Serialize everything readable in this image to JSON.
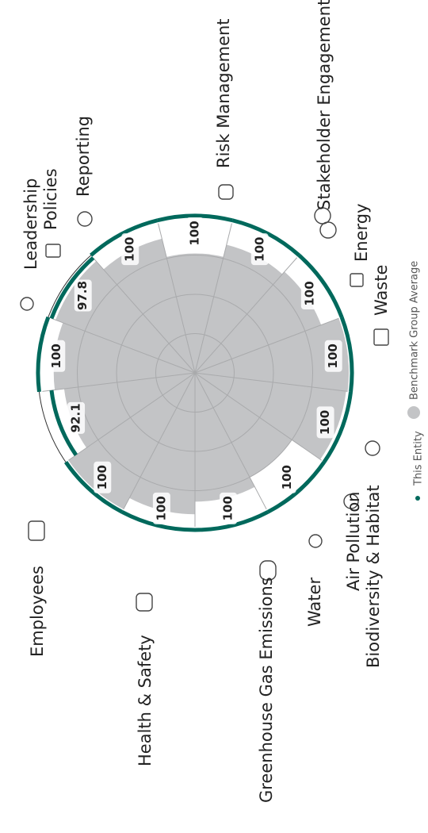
{
  "chart_data": {
    "type": "radial_bar",
    "categories": [
      "Risk Management",
      "Stakeholder Engagement",
      "Energy",
      "Waste",
      "Biodiversity & Habitat",
      "Air Pollution",
      "Water",
      "Greenhouse Gas Emissions",
      "Health & Safety",
      "Employees",
      "Leadership",
      "Policies",
      "Reporting"
    ],
    "series": [
      {
        "name": "This Entity",
        "color": "#00695c",
        "values": [
          100,
          100,
          100,
          100,
          100,
          100,
          100,
          100,
          100,
          92.1,
          100,
          97.8,
          100
        ]
      },
      {
        "name": "Benchmark Group Average",
        "color": "#c3c4c6",
        "values": [
          76,
          84,
          86,
          98,
          97,
          75,
          82,
          90,
          98,
          84,
          90,
          95,
          88
        ]
      }
    ],
    "rlim": [
      0,
      100
    ],
    "rticks": [
      25,
      50,
      75,
      100
    ]
  }
}
